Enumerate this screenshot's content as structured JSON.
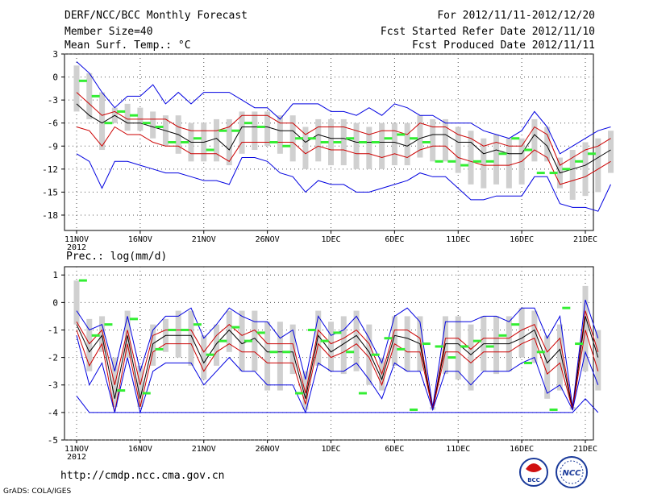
{
  "header": {
    "title": "DERF/NCC/BCC Monthly Forecast",
    "member_size": "Member Size=40",
    "variable": "Mean Surf. Temp.: °C",
    "forecast_period": "For 2012/11/11-2012/12/20",
    "start_date": "Fcst Started Refer Date 2012/11/10",
    "produced_date": "Fcst Produced Date 2012/11/11"
  },
  "footer": {
    "url": "http://cmdp.ncc.cma.gov.cn",
    "grads": "GrADS: COLA/IGES"
  },
  "logos": {
    "bcc": "BCC",
    "ncc": "NCC"
  },
  "colors": {
    "envelope": "#0000e0",
    "spread": "#cc0000",
    "mean": "#000000",
    "box": "#d0d0d0",
    "observed": "#33ee33",
    "grid": "#555555"
  },
  "chart_data": [
    {
      "type": "line",
      "title": "Mean Surf. Temp.: °C",
      "ylim": [
        -20,
        3
      ],
      "yticks": [
        "3",
        "0",
        "-3",
        "-6",
        "-9",
        "-12",
        "-15",
        "-18"
      ],
      "yvals": [
        3,
        0,
        -3,
        -6,
        -9,
        -12,
        -15,
        -18
      ],
      "xticks": [
        "11NOV",
        "16NOV",
        "21NOV",
        "26NOV",
        "1DEC",
        "6DEC",
        "11DEC",
        "16DEC",
        "21DEC"
      ],
      "year_label": "2012",
      "series": [
        {
          "name": "max",
          "values": [
            2,
            0.5,
            -2,
            -4,
            -2.5,
            -2.5,
            -1,
            -3.5,
            -2,
            -3.5,
            -2,
            -2,
            -2,
            -3,
            -4,
            -4,
            -5.5,
            -3.5,
            -3.5,
            -3.5,
            -4.5,
            -4.5,
            -5,
            -4,
            -5,
            -3.5,
            -4,
            -5,
            -5,
            -6,
            -6,
            -6,
            -7,
            -7.5,
            -8,
            -7,
            -4.5,
            -6.5,
            -10,
            -9,
            -8,
            -7,
            -6.5
          ]
        },
        {
          "name": "upper",
          "values": [
            -2,
            -3.5,
            -5,
            -4.5,
            -5.5,
            -5.5,
            -5.5,
            -5.5,
            -6.5,
            -7,
            -7,
            -7,
            -6.5,
            -5,
            -5,
            -5,
            -6,
            -6,
            -7.5,
            -6.5,
            -6.5,
            -6.5,
            -7,
            -7.5,
            -7,
            -7,
            -7.5,
            -6,
            -6.5,
            -6.5,
            -7.5,
            -8,
            -9,
            -8.5,
            -9,
            -9,
            -6.5,
            -7.5,
            -11.5,
            -10.5,
            -9.5,
            -9,
            -8
          ]
        },
        {
          "name": "mean",
          "values": [
            -3.5,
            -5,
            -6,
            -5,
            -6,
            -6,
            -6.5,
            -7,
            -7.5,
            -8.5,
            -8.5,
            -8,
            -9.5,
            -6.5,
            -6.5,
            -6.5,
            -7,
            -7,
            -8.5,
            -7.5,
            -8,
            -8,
            -8.5,
            -8.5,
            -8.5,
            -8.5,
            -9,
            -8,
            -7.5,
            -7.5,
            -8.5,
            -8.5,
            -10,
            -9.5,
            -10,
            -10,
            -7.5,
            -9,
            -12.5,
            -12,
            -11.5,
            -10.5,
            -9.5
          ]
        },
        {
          "name": "lower",
          "values": [
            -6.5,
            -7,
            -9,
            -6.5,
            -7.5,
            -7.5,
            -8.5,
            -9,
            -9,
            -10,
            -10,
            -10,
            -11,
            -8.5,
            -8.5,
            -8.5,
            -8.5,
            -8.5,
            -10,
            -9,
            -9.5,
            -9.5,
            -10,
            -10,
            -10.5,
            -10,
            -10.5,
            -9.5,
            -9,
            -9,
            -10.5,
            -11,
            -11.5,
            -11.5,
            -11.5,
            -11,
            -9.5,
            -10.5,
            -14,
            -13.5,
            -13,
            -12,
            -11
          ]
        },
        {
          "name": "min",
          "values": [
            -10,
            -11,
            -14.5,
            -11,
            -11,
            -11.5,
            -12,
            -12.5,
            -12.5,
            -13,
            -13.5,
            -13.5,
            -14,
            -10.5,
            -10.5,
            -11,
            -12.5,
            -13,
            -15,
            -13.5,
            -14,
            -14,
            -15,
            -15,
            -14.5,
            -14,
            -13.5,
            -12.5,
            -13,
            -13,
            -14.5,
            -16,
            -16,
            -15.5,
            -15.5,
            -15.5,
            -13,
            -13,
            -16.5,
            -17,
            -17,
            -17.5,
            -14
          ]
        }
      ],
      "box_top": [
        1.5,
        0.5,
        -2,
        -4,
        -3.5,
        -4,
        -4.5,
        -5,
        -5,
        -6,
        -6,
        -5.5,
        -5.5,
        -4.5,
        -4.5,
        -4.5,
        -5,
        -5,
        -6.5,
        -5.5,
        -5.5,
        -5.5,
        -6,
        -6.5,
        -6,
        -6,
        -6,
        -5,
        -5.5,
        -5.5,
        -6.5,
        -7,
        -8,
        -7.5,
        -8,
        -8,
        -5.5,
        -6.5,
        -10.5,
        -9.5,
        -8.5,
        -8,
        -7
      ],
      "box_bottom": [
        -4.5,
        -5.5,
        -9.5,
        -6,
        -7,
        -7,
        -8,
        -9,
        -10,
        -11,
        -11,
        -11,
        -11.5,
        -10,
        -9.5,
        -9,
        -10,
        -11,
        -12,
        -11,
        -11.5,
        -11.5,
        -12,
        -12,
        -12,
        -11.5,
        -11.5,
        -10.5,
        -11,
        -11,
        -12.5,
        -14,
        -14.5,
        -14,
        -14.5,
        -14,
        -11,
        -11,
        -14.5,
        -16,
        -15.5,
        -15,
        -12.5
      ],
      "observed": [
        -0.5,
        -2.5,
        -6,
        -4.5,
        -5,
        -6,
        -6.5,
        -8.5,
        -8.5,
        -8,
        -9.5,
        -7,
        -7,
        -6,
        -6.5,
        -8.5,
        -9,
        -8,
        -8,
        -8.5,
        -8.5,
        -8,
        -8.5,
        -8.5,
        -8,
        -7.5,
        -8,
        -8.5,
        -11,
        -11,
        -11.5,
        -11,
        -11,
        -10,
        -8,
        -9.5,
        -12.5,
        -12.5,
        -12,
        -11,
        -10
      ]
    },
    {
      "type": "line",
      "title": "Prec.: log(mm/d)",
      "ylim": [
        -5,
        1.3
      ],
      "yticks": [
        "1",
        "0",
        "-1",
        "-2",
        "-3",
        "-4",
        "-5"
      ],
      "yvals": [
        1,
        0,
        -1,
        -2,
        -3,
        -4,
        -5
      ],
      "xticks": [
        "11NOV",
        "16NOV",
        "21NOV",
        "26NOV",
        "1DEC",
        "6DEC",
        "11DEC",
        "16DEC",
        "21DEC"
      ],
      "year_label": "2012",
      "series": [
        {
          "name": "max",
          "values": [
            -0.3,
            -1,
            -0.8,
            -2.5,
            -0.5,
            -2.5,
            -1,
            -0.5,
            -0.5,
            -0.2,
            -1.3,
            -0.8,
            -0.2,
            -0.5,
            -0.7,
            -0.7,
            -1.3,
            -1,
            -2.8,
            -0.5,
            -1.2,
            -1,
            -0.5,
            -1.3,
            -2.2,
            -0.5,
            -0.2,
            -0.7,
            -3.8,
            -0.7,
            -0.7,
            -0.7,
            -0.5,
            -0.5,
            -0.7,
            -0.2,
            -0.2,
            -1.3,
            -0.5,
            -3.8,
            0.1,
            -1.3
          ]
        },
        {
          "name": "upper",
          "values": [
            -0.7,
            -1.5,
            -1,
            -3,
            -1,
            -3,
            -1.2,
            -1,
            -1,
            -1,
            -1.8,
            -1.2,
            -0.8,
            -1.2,
            -1,
            -1.5,
            -1.5,
            -1.5,
            -3.3,
            -1,
            -1.5,
            -1.3,
            -1,
            -1.5,
            -2.6,
            -1,
            -1,
            -1.3,
            -3.9,
            -1.3,
            -1.3,
            -1.7,
            -1.3,
            -1.3,
            -1.3,
            -1,
            -0.8,
            -1.8,
            -1.3,
            -3.9,
            -0.3,
            -1.8
          ]
        },
        {
          "name": "mean",
          "values": [
            -0.8,
            -1.8,
            -1.2,
            -3.5,
            -1.2,
            -3.5,
            -1.5,
            -1.2,
            -1.2,
            -1.2,
            -2.2,
            -1.5,
            -1,
            -1.5,
            -1.3,
            -1.8,
            -1.8,
            -1.8,
            -3.5,
            -1.2,
            -1.8,
            -1.5,
            -1.2,
            -1.8,
            -2.8,
            -1.2,
            -1.3,
            -1.5,
            -3.9,
            -1.5,
            -1.5,
            -1.9,
            -1.5,
            -1.5,
            -1.5,
            -1.3,
            -1,
            -2.2,
            -1.7,
            -3.9,
            -0.5,
            -2
          ]
        },
        {
          "name": "lower",
          "values": [
            -1,
            -2.3,
            -1.5,
            -4,
            -1.5,
            -3.8,
            -1.8,
            -1.5,
            -1.5,
            -1.5,
            -2.5,
            -1.8,
            -1.5,
            -1.8,
            -1.8,
            -2.2,
            -2.2,
            -2.2,
            -3.7,
            -1.5,
            -2,
            -1.8,
            -1.5,
            -2,
            -3,
            -1.5,
            -1.8,
            -1.8,
            -3.9,
            -1.8,
            -1.8,
            -2.2,
            -1.8,
            -1.8,
            -1.8,
            -1.5,
            -1.3,
            -2.6,
            -2.2,
            -3.9,
            -1,
            -2.5
          ]
        },
        {
          "name": "min",
          "values": [
            -1.2,
            -3,
            -2.2,
            -4,
            -2,
            -4,
            -2.5,
            -2.2,
            -2.2,
            -2.2,
            -3,
            -2.5,
            -2,
            -2.5,
            -2.5,
            -3,
            -3,
            -3,
            -4,
            -2.2,
            -2.5,
            -2.5,
            -2.2,
            -2.8,
            -3.5,
            -2.2,
            -2.5,
            -2.5,
            -3.9,
            -2.5,
            -2.5,
            -3,
            -2.5,
            -2.5,
            -2.5,
            -2.2,
            -2,
            -3.3,
            -3,
            -3.9,
            -1.8,
            -3
          ]
        },
        {
          "name": "min_envelope",
          "values": [
            -3.4,
            -4,
            -4,
            -4,
            -4,
            -4,
            -4,
            -4,
            -4,
            -4,
            -4,
            -4,
            -4,
            -4,
            -4,
            -4,
            -4,
            -4,
            -4,
            -4,
            -4,
            -4,
            -4,
            -4,
            -4,
            -4,
            -4,
            -4,
            -4,
            -4,
            -4,
            -4,
            -4,
            -4,
            -4,
            -4,
            -4,
            -4,
            -4,
            -4,
            -3.5,
            -4
          ]
        }
      ],
      "box_top": [
        0.8,
        -0.6,
        -0.5,
        -2,
        -0.3,
        -2.3,
        -0.8,
        -0.6,
        -0.3,
        -0.3,
        -1.2,
        -0.8,
        -0.3,
        -0.3,
        -0.3,
        -0.7,
        -0.7,
        -0.8,
        -2.5,
        -0.3,
        -0.7,
        -0.5,
        -0.3,
        -0.8,
        -2,
        -0.5,
        -0.5,
        -0.5,
        -3.8,
        -0.5,
        -0.5,
        -0.8,
        -0.5,
        -0.5,
        -0.5,
        -0.2,
        -0.3,
        -1.2,
        -0.8,
        -3.8,
        0.6,
        -1
      ],
      "box_bottom": [
        -0.8,
        -2.5,
        -1.8,
        -3.8,
        -2,
        -3.8,
        -2.3,
        -1.8,
        -2,
        -2.3,
        -2.8,
        -2.3,
        -1.8,
        -2.5,
        -2.5,
        -3.2,
        -3.2,
        -2.6,
        -3.9,
        -2.3,
        -2.5,
        -2.6,
        -2.5,
        -3,
        -3.2,
        -2.3,
        -2.5,
        -2.5,
        -3.9,
        -2.6,
        -2.8,
        -3.2,
        -2.5,
        -2.6,
        -2.5,
        -2,
        -2.2,
        -3.5,
        -3.2,
        -3.9,
        -2.5,
        -3.2
      ],
      "observed": [
        0.8,
        -1.2,
        -0.8,
        -3.2,
        -0.6,
        -3.3,
        -1.7,
        -1,
        -1,
        -0.8,
        -1.9,
        -1.4,
        -0.9,
        -1.4,
        -1.1,
        -1.8,
        -1.8,
        -3.3,
        -1,
        -1.4,
        -1.1,
        -1.8,
        -3.3,
        -1.9,
        -1.3,
        -1.7,
        -3.9,
        -1.5,
        -1.6,
        -2,
        -1.6,
        -1.4,
        -1.6,
        -1.2,
        -0.8,
        -2.2,
        -1.8,
        -3.9,
        -0.2,
        -1.5
      ]
    }
  ]
}
